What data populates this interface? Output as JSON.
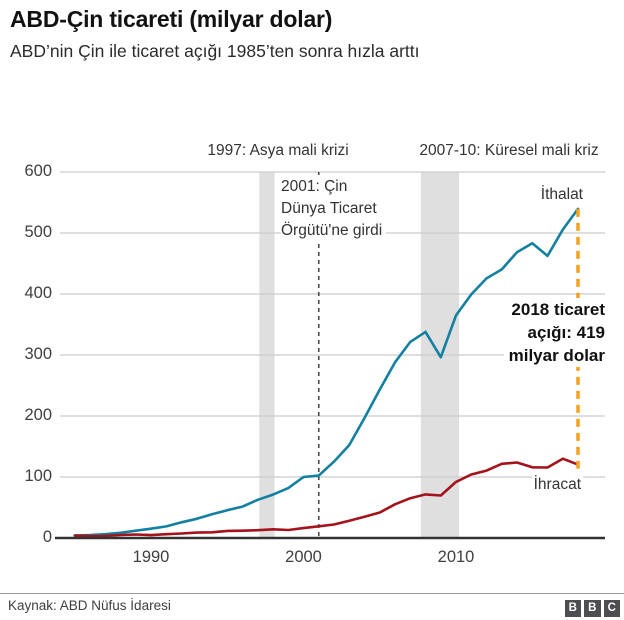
{
  "header": {
    "title": "ABD-Çin ticareti (milyar dolar)",
    "subtitle": "ABD’nin Çin ile ticaret açığı 1985’ten sonra hızla arttı"
  },
  "annotations": {
    "asian_crisis": "1997: Asya mali krizi",
    "global_crisis": "2007-10: Küresel mali kriz",
    "wto_lines": [
      "2001: Çin",
      "Dünya Ticaret",
      "Örgütü'ne girdi"
    ],
    "deficit_lines": [
      "2018 ticaret",
      "açığı: 419",
      "milyar dolar"
    ],
    "imports_label": "İthalat",
    "exports_label": "İhracat"
  },
  "footer": {
    "source": "Kaynak: ABD Nüfus İdaresi",
    "logo_letters": [
      "B",
      "B",
      "C"
    ]
  },
  "colors": {
    "imports_line": "#1380A1",
    "exports_line": "#A4131C",
    "accent_dash": "#F6A21D",
    "band": "#DFDFDF",
    "grid": "#CCCCCC",
    "axis": "#333333",
    "event_line": "#4A4A4A"
  },
  "chart_data": {
    "type": "line",
    "title": "ABD-Çin ticareti (milyar dolar)",
    "subtitle": "ABD’nin Çin ile ticaret açığı 1985’ten sonra hızla arttı",
    "xlabel": "",
    "ylabel": "",
    "ylim": [
      0,
      600
    ],
    "xlim": [
      1985,
      2018
    ],
    "grid": true,
    "legend_position": "inline-labels",
    "yticks": [
      0,
      100,
      200,
      300,
      400,
      500,
      600
    ],
    "xticks": [
      1990,
      2000,
      2010
    ],
    "x": [
      1985,
      1986,
      1987,
      1988,
      1989,
      1990,
      1991,
      1992,
      1993,
      1994,
      1995,
      1996,
      1997,
      1998,
      1999,
      2000,
      2001,
      2002,
      2003,
      2004,
      2005,
      2006,
      2007,
      2008,
      2009,
      2010,
      2011,
      2012,
      2013,
      2014,
      2015,
      2016,
      2017,
      2018
    ],
    "series": [
      {
        "id": "imports",
        "name": "İthalat",
        "color": "#1380A1",
        "values": [
          3.9,
          4.8,
          6.3,
          8.5,
          12.0,
          15.2,
          19.0,
          25.7,
          31.5,
          38.8,
          45.6,
          51.5,
          62.6,
          71.2,
          81.8,
          100.0,
          102.3,
          125.2,
          152.4,
          196.7,
          243.5,
          287.8,
          321.4,
          337.8,
          296.4,
          364.9,
          399.4,
          425.6,
          440.4,
          468.5,
          483.2,
          462.5,
          505.5,
          539.5
        ]
      },
      {
        "id": "exports",
        "name": "İhracat",
        "color": "#A4131C",
        "values": [
          3.9,
          3.1,
          3.5,
          5.0,
          5.8,
          4.8,
          6.3,
          7.4,
          8.8,
          9.3,
          11.7,
          12.0,
          12.8,
          14.2,
          13.1,
          16.2,
          19.2,
          22.1,
          28.4,
          34.7,
          41.8,
          55.2,
          65.2,
          71.5,
          69.6,
          91.9,
          104.1,
          110.5,
          121.7,
          123.7,
          115.9,
          115.6,
          130.0,
          120.3
        ]
      }
    ],
    "bands": [
      {
        "label": "1997: Asya mali krizi",
        "from_year": 1997.1,
        "to_year": 1998.1
      },
      {
        "label": "2007-10: Küresel mali kriz",
        "from_year": 2007.7,
        "to_year": 2010.2
      }
    ],
    "wto_line_year": 2001,
    "deficit_marker_year": 2018,
    "deficit_value_2018": 419
  }
}
